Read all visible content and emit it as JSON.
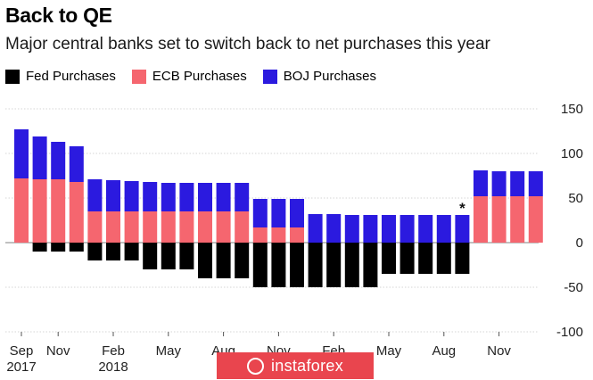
{
  "title": "Back to QE",
  "subtitle": "Major central banks set to switch back to net purchases this year",
  "legend": [
    {
      "label": "Fed Purchases",
      "color": "#000000"
    },
    {
      "label": "ECB Purchases",
      "color": "#f5666f"
    },
    {
      "label": "BOJ Purchases",
      "color": "#2b1adf"
    }
  ],
  "watermark": "instaforex",
  "chart_data": {
    "type": "bar",
    "stacked": true,
    "y_ticks": [
      150,
      100,
      50,
      0,
      -50,
      -100
    ],
    "y_tick_labels": [
      "150",
      "100",
      "50",
      "0",
      "-50",
      "-100"
    ],
    "ylim": [
      -100,
      150
    ],
    "grid": true,
    "annotation": {
      "text": "*",
      "bar_index": 24
    },
    "x_tick_labels": [
      {
        "label": "Sep",
        "sublabel": "2017",
        "bar_index": 0
      },
      {
        "label": "Nov",
        "sublabel": "",
        "bar_index": 2
      },
      {
        "label": "Feb",
        "sublabel": "2018",
        "bar_index": 5
      },
      {
        "label": "May",
        "sublabel": "",
        "bar_index": 8
      },
      {
        "label": "Aug",
        "sublabel": "",
        "bar_index": 11
      },
      {
        "label": "Nov",
        "sublabel": "",
        "bar_index": 14
      },
      {
        "label": "Feb",
        "sublabel": "",
        "bar_index": 17
      },
      {
        "label": "May",
        "sublabel": "",
        "bar_index": 20
      },
      {
        "label": "Aug",
        "sublabel": "",
        "bar_index": 23
      },
      {
        "label": "Nov",
        "sublabel": "",
        "bar_index": 26
      }
    ],
    "series": [
      {
        "name": "Fed Purchases",
        "color": "#000000",
        "values": [
          0,
          -10,
          -10,
          -10,
          -20,
          -20,
          -20,
          -30,
          -30,
          -30,
          -40,
          -40,
          -40,
          -50,
          -50,
          -50,
          -50,
          -50,
          -50,
          -50,
          -35,
          -35,
          -35,
          -35,
          -35,
          0,
          0,
          0,
          0
        ]
      },
      {
        "name": "ECB Purchases",
        "color": "#f5666f",
        "values": [
          72,
          71,
          71,
          68,
          35,
          35,
          35,
          35,
          35,
          35,
          35,
          35,
          35,
          17,
          17,
          17,
          0,
          0,
          0,
          0,
          0,
          0,
          0,
          0,
          0,
          52,
          52,
          52,
          52
        ]
      },
      {
        "name": "BOJ Purchases",
        "color": "#2b1adf",
        "values": [
          55,
          48,
          42,
          40,
          36,
          35,
          34,
          33,
          32,
          32,
          32,
          32,
          32,
          32,
          32,
          32,
          32,
          32,
          31,
          31,
          31,
          31,
          31,
          31,
          31,
          29,
          28,
          28,
          28
        ]
      }
    ]
  }
}
